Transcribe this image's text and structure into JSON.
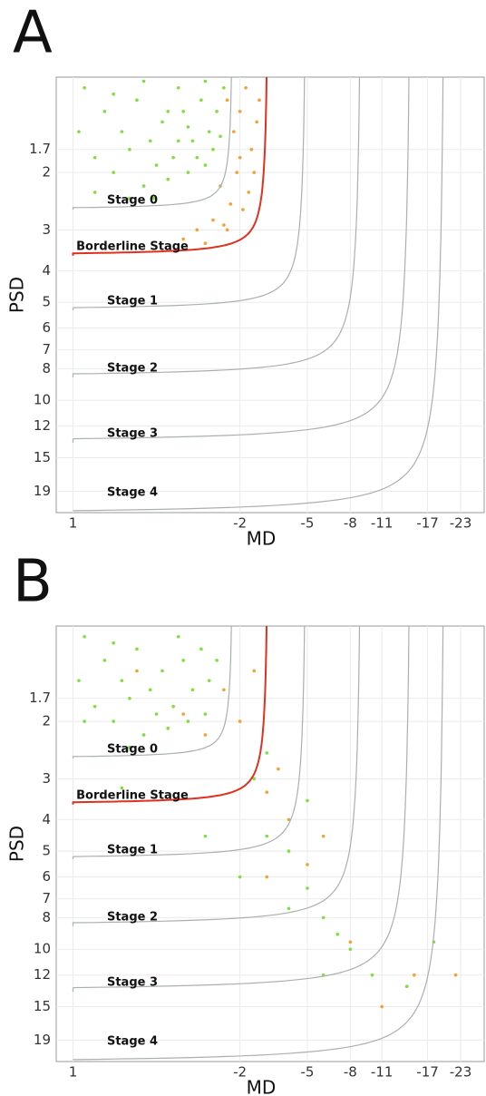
{
  "chart_data": [
    {
      "type": "scatter",
      "panel_label": "A",
      "xlabel": "MD",
      "ylabel": "PSD",
      "xlim": [
        1.13,
        -28.4
      ],
      "xticks": [
        1,
        -2,
        -5,
        -8,
        -11,
        -17,
        -23
      ],
      "ylim": [
        1.02,
        22.1
      ],
      "yticks": [
        1.7,
        2,
        3,
        4,
        5,
        6,
        7,
        8,
        10,
        12,
        15,
        19
      ],
      "grid": true,
      "series": [
        {
          "color": "#7ee03a",
          "x": [
            0.9,
            0.7,
            0.5,
            0.3,
            0.1,
            -0.1,
            -0.3,
            -0.5,
            -0.7,
            -0.9,
            -1.1,
            -1.3,
            -1.5,
            0.8,
            0.6,
            0.4,
            0.2,
            0,
            -0.2,
            -0.4,
            -0.6,
            -0.8,
            -1.0,
            -1.2,
            0.95,
            0.6,
            0.2,
            -0.4,
            -1.0,
            0.4,
            0.8,
            -0.2,
            -0.6,
            -1.4,
            0.05
          ],
          "y": [
            1.1,
            1.3,
            1.5,
            1.2,
            1.6,
            1.4,
            1.8,
            1.3,
            1.6,
            1.2,
            1.5,
            1.3,
            1.1,
            1.8,
            2.0,
            1.7,
            2.2,
            1.9,
            2.1,
            1.6,
            2.0,
            1.8,
            1.9,
            1.7,
            1.5,
            1.15,
            1.05,
            1.1,
            1.05,
            2.4,
            2.3,
            1.3,
            1.45,
            1.55,
            2.4
          ]
        },
        {
          "color": "#f5a032",
          "x": [
            -1.6,
            -1.8,
            -2.0,
            -2.2,
            -2.4,
            -2.6,
            -1.9,
            -2.3,
            -1.7,
            -1.2,
            -1.5,
            -2.1,
            -0.8,
            -0.5,
            -1.0,
            -2.5,
            -2.7,
            -1.4,
            -2.0,
            -1.6
          ],
          "y": [
            1.2,
            1.5,
            1.3,
            1.1,
            1.7,
            1.4,
            2.0,
            2.3,
            2.5,
            2.8,
            2.9,
            2.6,
            3.0,
            3.2,
            3.3,
            2.0,
            1.2,
            2.2,
            1.8,
            3.0
          ]
        }
      ],
      "boundaries": [
        {
          "label": "Stage 0",
          "psd": 2.6,
          "md": -1.8,
          "color": "#a9b0b0"
        },
        {
          "label": "Borderline Stage",
          "psd": 3.6,
          "md": -3.1,
          "color": "#e0301e"
        },
        {
          "label": "Stage 1",
          "psd": 5.3,
          "md": -5.0,
          "color": "#a9b0b0"
        },
        {
          "label": "Stage 2",
          "psd": 8.5,
          "md": -9.1,
          "color": "#a9b0b0"
        },
        {
          "label": "Stage 3",
          "psd": 13.5,
          "md": -14.8,
          "color": "#a9b0b0"
        },
        {
          "label": "Stage 4",
          "psd": 22.5,
          "md": -20.3,
          "color": "#a9b0b0"
        }
      ]
    },
    {
      "type": "scatter",
      "panel_label": "B",
      "xlabel": "MD",
      "ylabel": "PSD",
      "xlim": [
        1.13,
        -28.4
      ],
      "xticks": [
        1,
        -2,
        -5,
        -8,
        -11,
        -17,
        -23
      ],
      "ylim": [
        1.02,
        22.1
      ],
      "yticks": [
        1.7,
        2,
        3,
        4,
        5,
        6,
        7,
        8,
        10,
        12,
        15,
        19
      ],
      "grid": true,
      "series": [
        {
          "color": "#7ee03a",
          "x": [
            0.9,
            0.7,
            0.5,
            0.3,
            0.1,
            -0.1,
            -0.3,
            -0.5,
            -0.7,
            -0.9,
            -1.1,
            -1.3,
            0.8,
            0.6,
            0.4,
            0.2,
            0,
            -0.2,
            -0.6,
            -1.0,
            0.95,
            0.6,
            -0.4,
            0.4,
            -2.5,
            -3,
            -4,
            -5,
            -6,
            -8,
            -10,
            -14,
            -18,
            -1,
            -2,
            -4,
            -6,
            0.9,
            0.5,
            -3,
            -5,
            -7
          ],
          "y": [
            1.1,
            1.3,
            1.5,
            1.2,
            1.6,
            1.4,
            1.8,
            1.3,
            1.6,
            1.2,
            1.5,
            1.3,
            1.8,
            2.0,
            1.7,
            2.2,
            1.9,
            2.1,
            2.0,
            1.9,
            1.5,
            1.15,
            1.1,
            2.4,
            3.0,
            4.5,
            5,
            6.5,
            8,
            10,
            12,
            13,
            9.5,
            4.5,
            6,
            7.5,
            12,
            2.0,
            3.2,
            2.5,
            3.5,
            9
          ]
        },
        {
          "color": "#f5a032",
          "x": [
            -2,
            -3,
            -4,
            -5,
            -2.5,
            -3.5,
            -6,
            -1,
            -3,
            -8,
            -15,
            -22,
            -11,
            -1.5,
            0.3,
            -0.5
          ],
          "y": [
            2.0,
            3.3,
            4,
            5.5,
            1.4,
            2.8,
            4.5,
            2.2,
            6,
            9.5,
            12,
            12,
            15,
            1.6,
            1.4,
            1.9
          ]
        }
      ],
      "boundaries": [
        {
          "label": "Stage 0",
          "psd": 2.6,
          "md": -1.8,
          "color": "#a9b0b0"
        },
        {
          "label": "Borderline Stage",
          "psd": 3.6,
          "md": -3.1,
          "color": "#e0301e"
        },
        {
          "label": "Stage 1",
          "psd": 5.3,
          "md": -5.0,
          "color": "#a9b0b0"
        },
        {
          "label": "Stage 2",
          "psd": 8.5,
          "md": -9.1,
          "color": "#a9b0b0"
        },
        {
          "label": "Stage 3",
          "psd": 13.5,
          "md": -14.8,
          "color": "#a9b0b0"
        },
        {
          "label": "Stage 4",
          "psd": 22.5,
          "md": -20.3,
          "color": "#a9b0b0"
        }
      ]
    }
  ]
}
